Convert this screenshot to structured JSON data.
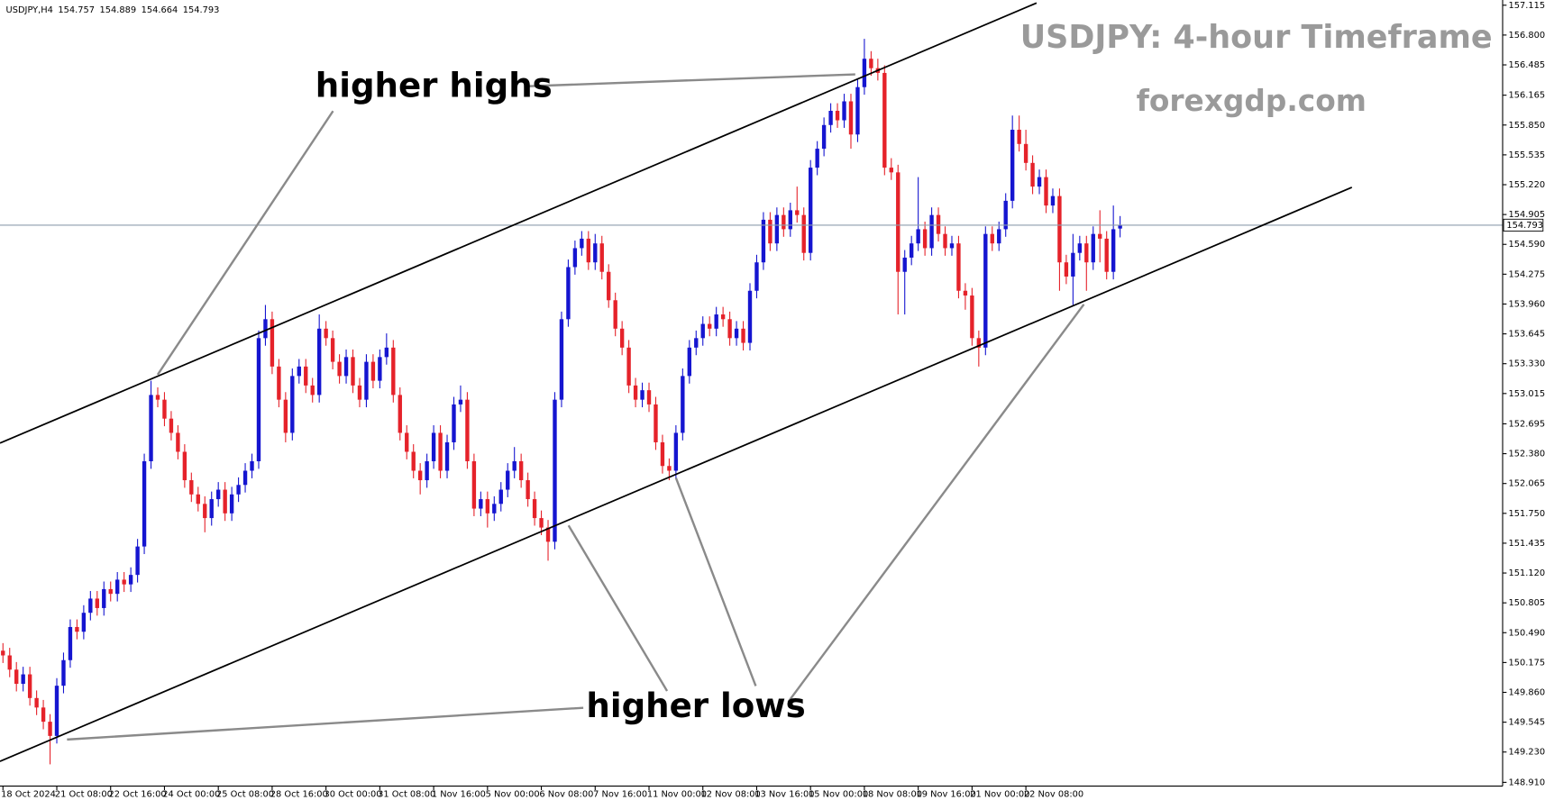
{
  "chart_data": {
    "type": "candlestick",
    "symbol": "USDJPY,H4",
    "title": "USDJPY: 4-hour Timeframe",
    "subtitle": "forexgdp.com",
    "annotations": [
      "higher highs",
      "higher lows"
    ],
    "bull_color": "#1515d0",
    "bear_color": "#e5222a",
    "grid": false,
    "ylim": [
      148.87,
      157.17
    ],
    "yticks": [
      157.115,
      {
        "value": 156.8,
        "label": "156.800"
      },
      156.485,
      156.165,
      {
        "value": 155.85,
        "label": "155.850"
      },
      155.535,
      {
        "value": 155.22,
        "label": "155.220"
      },
      154.905,
      {
        "value": 154.59,
        "label": "154.590"
      },
      154.275,
      {
        "value": 153.96,
        "label": "153.960"
      },
      153.645,
      {
        "value": 153.33,
        "label": "153.330"
      },
      153.015,
      152.695,
      {
        "value": 152.38,
        "label": "152.380"
      },
      152.065,
      {
        "value": 151.75,
        "label": "151.750"
      },
      151.435,
      {
        "value": 151.12,
        "label": "151.120"
      },
      150.805,
      {
        "value": 150.49,
        "label": "150.490"
      },
      150.175,
      {
        "value": 149.86,
        "label": "149.860"
      },
      149.545,
      {
        "value": 149.23,
        "label": "149.230"
      },
      {
        "value": 148.91,
        "label": "148.910"
      }
    ],
    "categories": [
      "18 Oct 2024",
      null,
      null,
      null,
      null,
      null,
      null,
      null,
      "21 Oct 08:00",
      null,
      null,
      null,
      null,
      null,
      null,
      null,
      "22 Oct 16:00",
      null,
      null,
      null,
      null,
      null,
      null,
      null,
      "24 Oct 00:00",
      null,
      null,
      null,
      null,
      null,
      null,
      null,
      "25 Oct 08:00",
      null,
      null,
      null,
      null,
      null,
      null,
      null,
      "28 Oct 16:00",
      null,
      null,
      null,
      null,
      null,
      null,
      null,
      "30 Oct 00:00",
      null,
      null,
      null,
      null,
      null,
      null,
      null,
      "31 Oct 08:00",
      null,
      null,
      null,
      null,
      null,
      null,
      null,
      "1 Nov 16:00",
      null,
      null,
      null,
      null,
      null,
      null,
      null,
      "5 Nov 00:00",
      null,
      null,
      null,
      null,
      null,
      null,
      null,
      "6 Nov 08:00",
      null,
      null,
      null,
      null,
      null,
      null,
      null,
      "7 Nov 16:00",
      null,
      null,
      null,
      null,
      null,
      null,
      null,
      "11 Nov 00:00",
      null,
      null,
      null,
      null,
      null,
      null,
      null,
      "12 Nov 08:00",
      null,
      null,
      null,
      null,
      null,
      null,
      null,
      "13 Nov 16:00",
      null,
      null,
      null,
      null,
      null,
      null,
      null,
      "15 Nov 00:00",
      null,
      null,
      null,
      null,
      null,
      null,
      null,
      "18 Nov 08:00",
      null,
      null,
      null,
      null,
      null,
      null,
      null,
      "19 Nov 16:00",
      null,
      null,
      null,
      null,
      null,
      null,
      null,
      "21 Nov 00:00",
      null,
      null,
      null,
      null,
      null,
      null,
      null,
      "22 Nov 08:00",
      null,
      null,
      null,
      null,
      null,
      null,
      null,
      null,
      null,
      null,
      null,
      null,
      null,
      null
    ],
    "candles": [
      [
        150.3,
        150.38,
        150.17,
        150.25
      ],
      [
        150.25,
        150.33,
        150.02,
        150.1
      ],
      [
        150.1,
        150.18,
        149.87,
        149.95
      ],
      [
        149.95,
        150.13,
        149.87,
        150.05
      ],
      [
        150.05,
        150.13,
        149.72,
        149.8
      ],
      [
        149.8,
        149.88,
        149.62,
        149.7
      ],
      [
        149.7,
        149.78,
        149.47,
        149.55
      ],
      [
        149.55,
        149.63,
        149.1,
        149.4
      ],
      [
        149.4,
        150.01,
        149.32,
        149.93
      ],
      [
        149.93,
        150.28,
        149.85,
        150.2
      ],
      [
        150.2,
        150.63,
        150.12,
        150.55
      ],
      [
        150.55,
        150.63,
        150.42,
        150.5
      ],
      [
        150.5,
        150.78,
        150.42,
        150.7
      ],
      [
        150.7,
        150.93,
        150.62,
        150.85
      ],
      [
        150.85,
        150.93,
        150.67,
        150.75
      ],
      [
        150.75,
        151.03,
        150.67,
        150.95
      ],
      [
        150.95,
        151.03,
        150.82,
        150.9
      ],
      [
        150.9,
        151.13,
        150.82,
        151.05
      ],
      [
        151.05,
        151.13,
        150.92,
        151.0
      ],
      [
        151.0,
        151.18,
        150.92,
        151.1
      ],
      [
        151.1,
        151.48,
        151.02,
        151.4
      ],
      [
        151.4,
        152.38,
        151.32,
        152.3
      ],
      [
        152.3,
        153.15,
        152.22,
        153.0
      ],
      [
        153.0,
        153.08,
        152.87,
        152.95
      ],
      [
        152.95,
        153.03,
        152.67,
        152.75
      ],
      [
        152.75,
        152.83,
        152.52,
        152.6
      ],
      [
        152.6,
        152.68,
        152.32,
        152.4
      ],
      [
        152.4,
        152.48,
        152.02,
        152.1
      ],
      [
        152.1,
        152.18,
        151.87,
        151.95
      ],
      [
        151.95,
        152.03,
        151.77,
        151.85
      ],
      [
        151.85,
        151.93,
        151.55,
        151.7
      ],
      [
        151.7,
        151.98,
        151.62,
        151.9
      ],
      [
        151.9,
        152.08,
        151.82,
        152.0
      ],
      [
        152.0,
        152.08,
        151.67,
        151.75
      ],
      [
        151.75,
        152.03,
        151.67,
        151.95
      ],
      [
        151.95,
        152.13,
        151.87,
        152.05
      ],
      [
        152.05,
        152.28,
        151.97,
        152.2
      ],
      [
        152.2,
        152.38,
        152.12,
        152.3
      ],
      [
        152.3,
        153.68,
        152.22,
        153.6
      ],
      [
        153.6,
        153.95,
        153.52,
        153.8
      ],
      [
        153.8,
        153.88,
        153.22,
        153.3
      ],
      [
        153.3,
        153.38,
        152.87,
        152.95
      ],
      [
        152.95,
        153.03,
        152.5,
        152.6
      ],
      [
        152.6,
        153.28,
        152.52,
        153.2
      ],
      [
        153.2,
        153.38,
        153.12,
        153.3
      ],
      [
        153.3,
        153.38,
        153.02,
        153.1
      ],
      [
        153.1,
        153.18,
        152.92,
        153.0
      ],
      [
        153.0,
        153.85,
        152.92,
        153.7
      ],
      [
        153.7,
        153.78,
        153.52,
        153.6
      ],
      [
        153.6,
        153.68,
        153.27,
        153.35
      ],
      [
        153.35,
        153.43,
        153.12,
        153.2
      ],
      [
        153.2,
        153.48,
        153.12,
        153.4
      ],
      [
        153.4,
        153.48,
        153.02,
        153.1
      ],
      [
        153.1,
        153.18,
        152.87,
        152.95
      ],
      [
        152.95,
        153.43,
        152.87,
        153.35
      ],
      [
        153.35,
        153.43,
        153.07,
        153.15
      ],
      [
        153.15,
        153.48,
        153.07,
        153.4
      ],
      [
        153.4,
        153.65,
        153.32,
        153.5
      ],
      [
        153.5,
        153.58,
        152.92,
        153.0
      ],
      [
        153.0,
        153.08,
        152.52,
        152.6
      ],
      [
        152.6,
        152.68,
        152.32,
        152.4
      ],
      [
        152.4,
        152.48,
        152.12,
        152.2
      ],
      [
        152.2,
        152.28,
        151.95,
        152.1
      ],
      [
        152.1,
        152.38,
        152.02,
        152.3
      ],
      [
        152.3,
        152.68,
        152.22,
        152.6
      ],
      [
        152.6,
        152.68,
        152.12,
        152.2
      ],
      [
        152.2,
        152.58,
        152.12,
        152.5
      ],
      [
        152.5,
        152.98,
        152.42,
        152.9
      ],
      [
        152.9,
        153.1,
        152.82,
        152.95
      ],
      [
        152.95,
        153.03,
        152.22,
        152.3
      ],
      [
        152.3,
        152.38,
        151.72,
        151.8
      ],
      [
        151.8,
        151.98,
        151.72,
        151.9
      ],
      [
        151.9,
        151.98,
        151.6,
        151.75
      ],
      [
        151.75,
        151.93,
        151.67,
        151.85
      ],
      [
        151.85,
        152.08,
        151.77,
        152.0
      ],
      [
        152.0,
        152.28,
        151.92,
        152.2
      ],
      [
        152.2,
        152.45,
        152.12,
        152.3
      ],
      [
        152.3,
        152.38,
        152.02,
        152.1
      ],
      [
        152.1,
        152.18,
        151.82,
        151.9
      ],
      [
        151.9,
        151.98,
        151.62,
        151.7
      ],
      [
        151.7,
        151.78,
        151.52,
        151.6
      ],
      [
        151.6,
        151.68,
        151.25,
        151.45
      ],
      [
        151.45,
        153.03,
        151.37,
        152.95
      ],
      [
        152.95,
        153.88,
        152.87,
        153.8
      ],
      [
        153.8,
        154.43,
        153.72,
        154.35
      ],
      [
        154.35,
        154.63,
        154.27,
        154.55
      ],
      [
        154.55,
        154.73,
        154.47,
        154.65
      ],
      [
        154.65,
        154.73,
        154.32,
        154.4
      ],
      [
        154.4,
        154.7,
        154.32,
        154.6
      ],
      [
        154.6,
        154.68,
        154.22,
        154.3
      ],
      [
        154.3,
        154.38,
        153.92,
        154.0
      ],
      [
        154.0,
        154.08,
        153.62,
        153.7
      ],
      [
        153.7,
        153.78,
        153.42,
        153.5
      ],
      [
        153.5,
        153.58,
        153.02,
        153.1
      ],
      [
        153.1,
        153.18,
        152.87,
        152.95
      ],
      [
        152.95,
        153.13,
        152.87,
        153.05
      ],
      [
        153.05,
        153.13,
        152.82,
        152.9
      ],
      [
        152.9,
        152.98,
        152.42,
        152.5
      ],
      [
        152.5,
        152.58,
        152.17,
        152.25
      ],
      [
        152.25,
        152.33,
        152.1,
        152.2
      ],
      [
        152.2,
        152.68,
        152.12,
        152.6
      ],
      [
        152.6,
        153.28,
        152.52,
        153.2
      ],
      [
        153.2,
        153.58,
        153.12,
        153.5
      ],
      [
        153.5,
        153.68,
        153.42,
        153.6
      ],
      [
        153.6,
        153.83,
        153.52,
        153.75
      ],
      [
        153.75,
        153.83,
        153.62,
        153.7
      ],
      [
        153.7,
        153.93,
        153.62,
        153.85
      ],
      [
        153.85,
        153.93,
        153.72,
        153.8
      ],
      [
        153.8,
        153.88,
        153.52,
        153.6
      ],
      [
        153.6,
        153.78,
        153.52,
        153.7
      ],
      [
        153.7,
        153.78,
        153.47,
        153.55
      ],
      [
        153.55,
        154.18,
        153.47,
        154.1
      ],
      [
        154.1,
        154.48,
        154.02,
        154.4
      ],
      [
        154.4,
        154.93,
        154.32,
        154.85
      ],
      [
        154.85,
        154.93,
        154.52,
        154.6
      ],
      [
        154.6,
        154.98,
        154.52,
        154.9
      ],
      [
        154.9,
        154.98,
        154.67,
        154.75
      ],
      [
        154.75,
        155.03,
        154.67,
        154.95
      ],
      [
        154.95,
        155.2,
        154.82,
        154.9
      ],
      [
        154.9,
        154.98,
        154.42,
        154.5
      ],
      [
        154.5,
        155.48,
        154.42,
        155.4
      ],
      [
        155.4,
        155.68,
        155.32,
        155.6
      ],
      [
        155.6,
        155.93,
        155.52,
        155.85
      ],
      [
        155.85,
        156.08,
        155.77,
        156.0
      ],
      [
        156.0,
        156.08,
        155.82,
        155.9
      ],
      [
        155.9,
        156.18,
        155.82,
        156.1
      ],
      [
        156.1,
        156.18,
        155.6,
        155.75
      ],
      [
        155.75,
        156.33,
        155.67,
        156.25
      ],
      [
        156.25,
        156.76,
        156.17,
        156.55
      ],
      [
        156.55,
        156.63,
        156.37,
        156.45
      ],
      [
        156.45,
        156.55,
        156.32,
        156.4
      ],
      [
        156.4,
        156.48,
        155.32,
        155.4
      ],
      [
        155.4,
        155.5,
        155.27,
        155.35
      ],
      [
        155.35,
        155.43,
        153.85,
        154.3
      ],
      [
        154.3,
        154.53,
        153.85,
        154.45
      ],
      [
        154.45,
        154.68,
        154.37,
        154.6
      ],
      [
        154.6,
        155.3,
        154.52,
        154.75
      ],
      [
        154.75,
        154.83,
        154.47,
        154.55
      ],
      [
        154.55,
        154.98,
        154.47,
        154.9
      ],
      [
        154.9,
        154.98,
        154.62,
        154.7
      ],
      [
        154.7,
        154.78,
        154.47,
        154.55
      ],
      [
        154.55,
        154.68,
        154.47,
        154.6
      ],
      [
        154.6,
        154.68,
        154.02,
        154.1
      ],
      [
        154.1,
        154.18,
        153.9,
        154.05
      ],
      [
        154.05,
        154.13,
        153.52,
        153.6
      ],
      [
        153.6,
        153.68,
        153.3,
        153.5
      ],
      [
        153.5,
        154.78,
        153.42,
        154.7
      ],
      [
        154.7,
        154.78,
        154.52,
        154.6
      ],
      [
        154.6,
        154.83,
        154.52,
        154.75
      ],
      [
        154.75,
        155.13,
        154.67,
        155.05
      ],
      [
        155.05,
        155.95,
        154.97,
        155.8
      ],
      [
        155.8,
        155.95,
        155.57,
        155.65
      ],
      [
        155.65,
        155.8,
        155.37,
        155.45
      ],
      [
        155.45,
        155.53,
        155.12,
        155.2
      ],
      [
        155.2,
        155.38,
        155.12,
        155.3
      ],
      [
        155.3,
        155.38,
        154.92,
        155.0
      ],
      [
        155.0,
        155.18,
        154.92,
        155.1
      ],
      [
        155.1,
        155.18,
        154.1,
        154.4
      ],
      [
        154.4,
        154.48,
        154.17,
        154.25
      ],
      [
        154.25,
        154.7,
        153.95,
        154.5
      ],
      [
        154.5,
        154.68,
        154.42,
        154.6
      ],
      [
        154.6,
        154.68,
        154.1,
        154.4
      ],
      [
        154.4,
        154.78,
        154.32,
        154.7
      ],
      [
        154.7,
        154.95,
        154.4,
        154.65
      ],
      [
        154.65,
        154.73,
        154.22,
        154.3
      ],
      [
        154.3,
        155.0,
        154.22,
        154.75
      ],
      [
        154.757,
        154.889,
        154.664,
        154.793
      ]
    ]
  }
}
